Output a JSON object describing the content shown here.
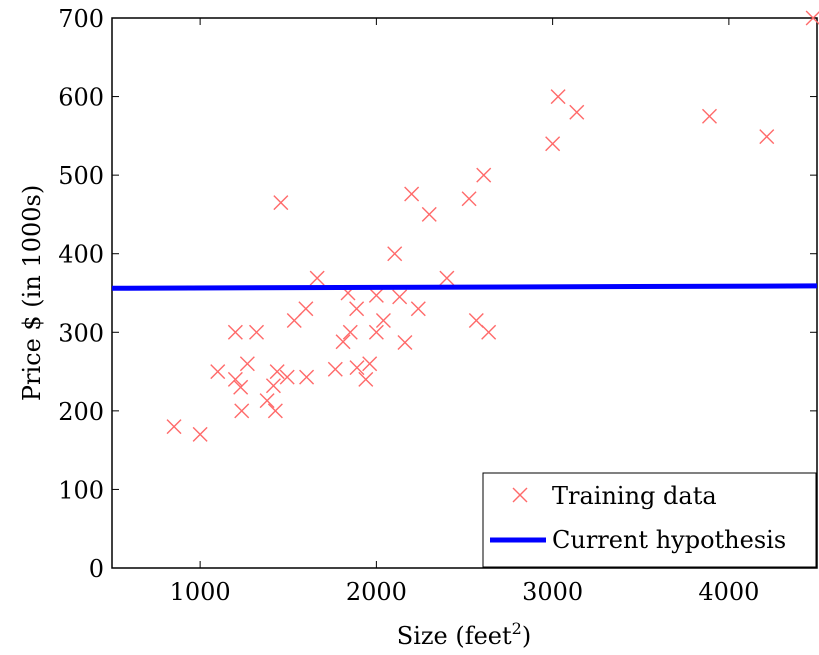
{
  "chart_data": {
    "type": "scatter",
    "title": "",
    "xlabel": "Size (feet",
    "xlabel_sup": "2",
    "xlabel_close": ")",
    "ylabel": "Price $ (in 1000s)",
    "xlim": [
      500,
      4500
    ],
    "ylim": [
      0,
      700
    ],
    "xticks": [
      1000,
      2000,
      3000,
      4000
    ],
    "yticks": [
      0,
      100,
      200,
      300,
      400,
      500,
      600,
      700
    ],
    "grid": false,
    "legend_position": "bottom-right",
    "series": [
      {
        "name": "Training data",
        "kind": "scatter",
        "marker": "x",
        "color": "#ff6a6a",
        "points": [
          [
            852,
            180
          ],
          [
            1000,
            170
          ],
          [
            1100,
            250
          ],
          [
            1200,
            300
          ],
          [
            1200,
            240
          ],
          [
            1230,
            230
          ],
          [
            1236,
            200
          ],
          [
            1268,
            260
          ],
          [
            1320,
            300
          ],
          [
            1380,
            213
          ],
          [
            1416,
            232
          ],
          [
            1427,
            200
          ],
          [
            1437,
            250
          ],
          [
            1458,
            465
          ],
          [
            1494,
            243
          ],
          [
            1534,
            315
          ],
          [
            1600,
            330
          ],
          [
            1604,
            243
          ],
          [
            1664,
            369
          ],
          [
            1767,
            253
          ],
          [
            1811,
            288
          ],
          [
            1839,
            350
          ],
          [
            1852,
            300
          ],
          [
            1890,
            255
          ],
          [
            1888,
            330
          ],
          [
            1940,
            240
          ],
          [
            1962,
            260
          ],
          [
            2000,
            347
          ],
          [
            2000,
            300
          ],
          [
            2040,
            315
          ],
          [
            2104,
            400
          ],
          [
            2132,
            345
          ],
          [
            2162,
            287
          ],
          [
            2200,
            476
          ],
          [
            2238,
            330
          ],
          [
            2300,
            450
          ],
          [
            2400,
            369
          ],
          [
            2526,
            470
          ],
          [
            2567,
            315
          ],
          [
            2609,
            500
          ],
          [
            2637,
            300
          ],
          [
            3000,
            540
          ],
          [
            3031,
            600
          ],
          [
            3137,
            580
          ],
          [
            3890,
            575
          ],
          [
            4215,
            549
          ],
          [
            4478,
            700
          ]
        ]
      },
      {
        "name": "Current hypothesis",
        "kind": "line",
        "color": "#0000ff",
        "points": [
          [
            500,
            356
          ],
          [
            4500,
            359
          ]
        ]
      }
    ]
  }
}
